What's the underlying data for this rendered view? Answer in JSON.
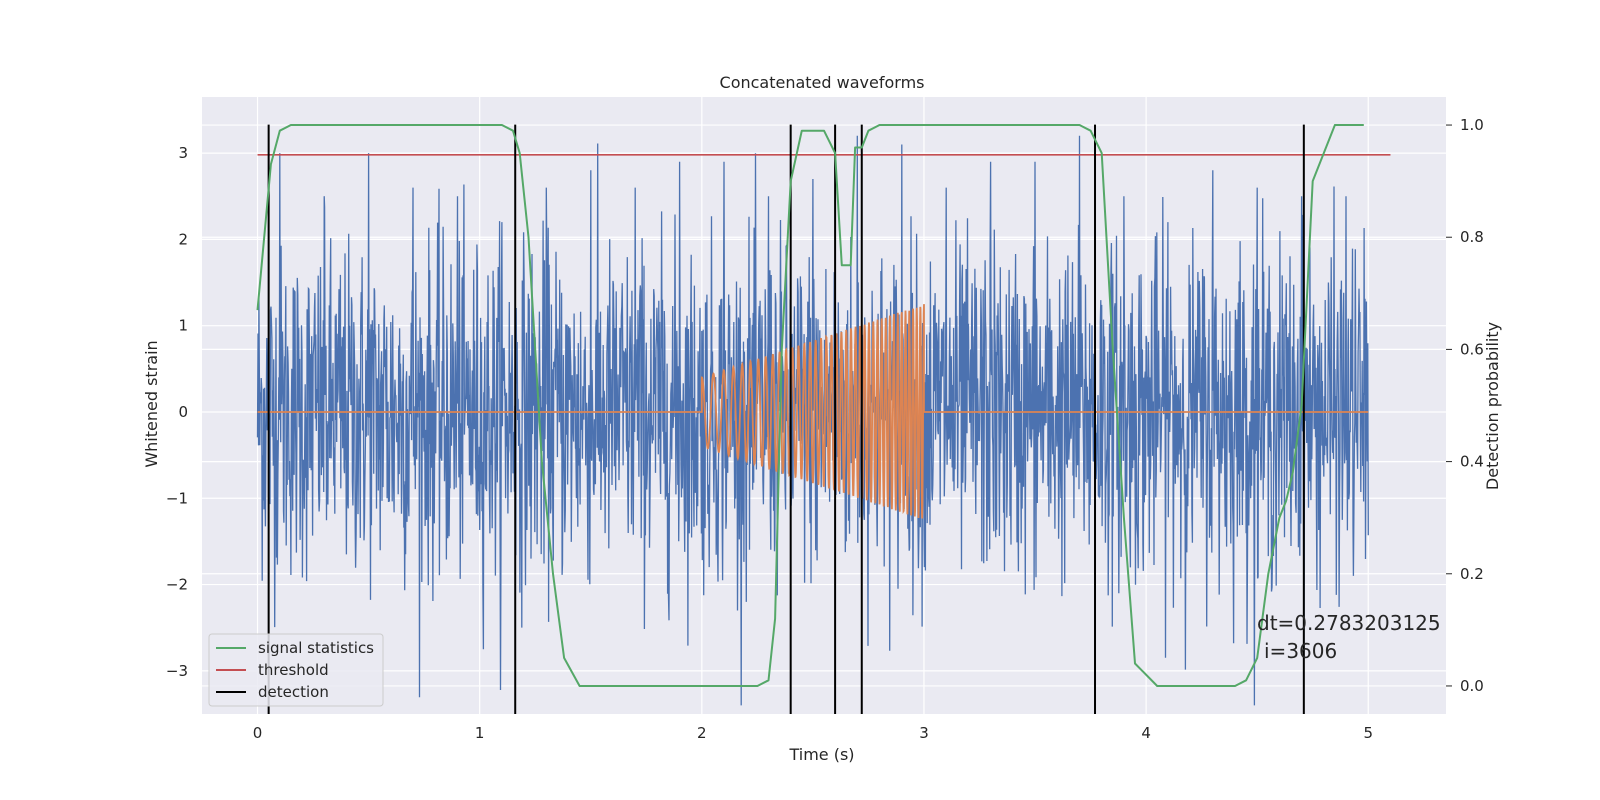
{
  "chart_data": {
    "type": "line",
    "title": "Concatenated waveforms",
    "xlabel": "Time (s)",
    "ylabel": "Whitened strain",
    "ylabel_right": "Detection probability",
    "xlim": [
      -0.25,
      5.35
    ],
    "ylim": [
      -3.5,
      3.65
    ],
    "ylim_right": [
      -0.05,
      1.05
    ],
    "x_ticks": [
      0,
      1,
      2,
      3,
      4,
      5
    ],
    "y_ticks": [
      -3,
      -2,
      -1,
      0,
      1,
      2,
      3
    ],
    "y_ticks_right": [
      0.0,
      0.2,
      0.4,
      0.6,
      0.8,
      1.0
    ],
    "grid": true,
    "legend_position": "lower-left",
    "colors": {
      "background": "#eaeaf2",
      "grid": "#ffffff",
      "strain": "#4c72b0",
      "injected_waveform": "#dd8452",
      "signal_statistics": "#55a868",
      "threshold": "#c44e52",
      "detection": "#000000"
    },
    "series": [
      {
        "axis": "left",
        "style": "noise",
        "x_range": [
          0,
          5.0
        ],
        "amplitude_typical": 1.2,
        "peak_values": [
          3.0,
          2.5,
          3.0,
          2.6,
          2.5,
          2.2,
          2.6,
          2.8,
          2.6,
          2.9,
          2.9,
          2.5,
          2.7,
          3.2,
          3.1,
          2.6,
          2.9,
          2.9,
          3.2,
          2.5,
          2.2,
          2.8,
          2.6,
          2.5,
          2.5
        ]
      },
      {
        "axis": "left",
        "style": "chirp",
        "x": [
          0,
          2.0,
          2.0,
          3.0,
          3.0,
          5.0
        ],
        "y": [
          0,
          0,
          0.4,
          1.25,
          0,
          0
        ],
        "chirp_start": 2.0,
        "chirp_end": 3.0,
        "amplitude_start": 0.4,
        "amplitude_end": 1.25
      },
      {
        "name": "signal statistics",
        "axis": "right",
        "x": [
          0.0,
          0.03,
          0.06,
          0.1,
          0.15,
          1.0,
          1.1,
          1.15,
          1.18,
          1.22,
          1.28,
          1.33,
          1.38,
          1.45,
          2.25,
          2.3,
          2.33,
          2.36,
          2.4,
          2.45,
          2.55,
          2.6,
          2.63,
          2.67,
          2.69,
          2.72,
          2.75,
          2.8,
          2.9,
          3.7,
          3.75,
          3.8,
          3.85,
          3.9,
          3.95,
          4.05,
          4.4,
          4.45,
          4.5,
          4.55,
          4.6,
          4.63,
          4.66,
          4.7,
          4.75,
          4.85,
          4.98
        ],
        "y": [
          0.67,
          0.8,
          0.93,
          0.99,
          1.0,
          1.0,
          1.0,
          0.99,
          0.95,
          0.8,
          0.4,
          0.2,
          0.05,
          0.0,
          0.0,
          0.01,
          0.12,
          0.6,
          0.9,
          0.99,
          0.99,
          0.95,
          0.75,
          0.75,
          0.96,
          0.96,
          0.99,
          1.0,
          1.0,
          1.0,
          0.99,
          0.95,
          0.6,
          0.3,
          0.04,
          0.0,
          0.0,
          0.01,
          0.05,
          0.2,
          0.3,
          0.33,
          0.38,
          0.5,
          0.9,
          1.0,
          1.0
        ]
      },
      {
        "name": "threshold",
        "axis": "left",
        "x": [
          0,
          5.1
        ],
        "y": [
          2.98,
          2.98
        ]
      }
    ],
    "detections": {
      "name": "detection",
      "x": [
        0.05,
        1.16,
        2.4,
        2.6,
        2.72,
        3.77,
        4.71
      ],
      "y_range": [
        -3.5,
        3.33
      ]
    },
    "annotations": [
      "dt=0.2783203125",
      "i=3606"
    ]
  }
}
